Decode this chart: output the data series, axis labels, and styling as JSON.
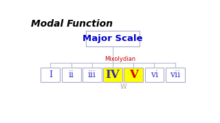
{
  "title": "Modal Function",
  "top_box_label": "Major Scale",
  "top_box_color": "#0000cc",
  "mode_label": "Mixolydian",
  "mode_label_color": "#cc0000",
  "bottom_label": "W",
  "bottom_label_color": "#aaaaaa",
  "degrees": [
    "I",
    "ii",
    "iii",
    "IV",
    "V",
    "vi",
    "vii"
  ],
  "degree_colors": [
    "#3333cc",
    "#3333cc",
    "#3333cc",
    "#333399",
    "#cc0000",
    "#3333cc",
    "#3333cc"
  ],
  "degree_bg": [
    "#ffffff",
    "#ffffff",
    "#ffffff",
    "#ffff00",
    "#ffff00",
    "#ffffff",
    "#ffffff"
  ],
  "highlight_indices": [
    3,
    4
  ],
  "background_color": "#ffffff",
  "box_edge_color": "#aaaacc",
  "line_color": "#bbbbcc"
}
